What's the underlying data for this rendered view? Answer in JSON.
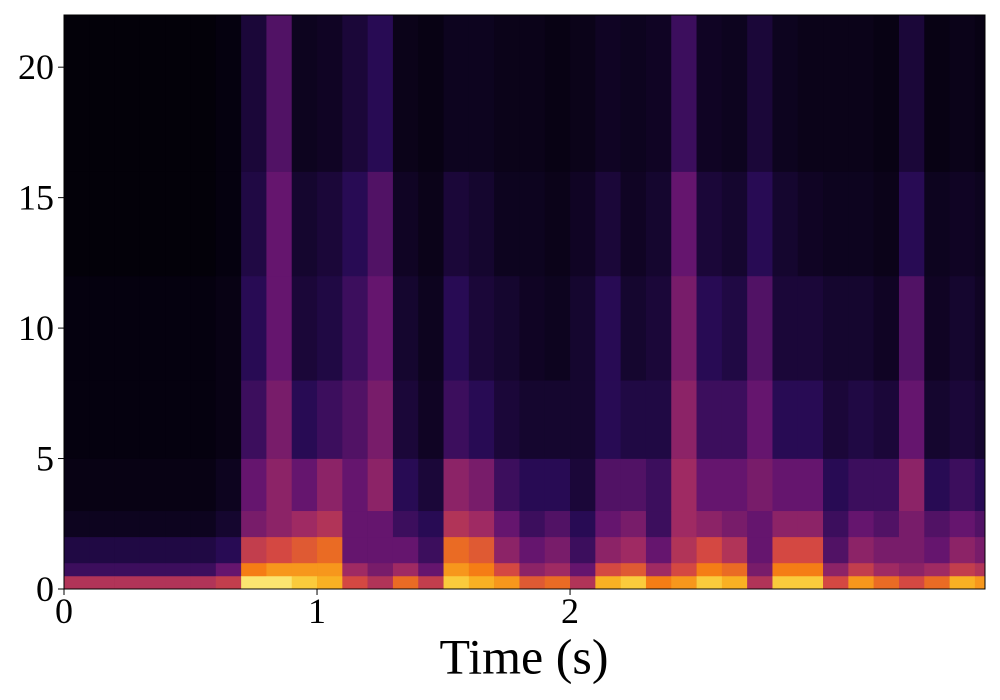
{
  "chart_data": {
    "type": "spectrogram",
    "x_label": "Time (s)",
    "colormap": "inferno",
    "xlim": [
      0,
      3.64
    ],
    "xticks": [
      0,
      1,
      2
    ],
    "ylim": [
      0,
      22
    ],
    "yticks": [
      0,
      5,
      10,
      15,
      20
    ],
    "x_bins": [
      0,
      0.1,
      0.2,
      0.3,
      0.4,
      0.5,
      0.6,
      0.7,
      0.8,
      0.9,
      1.0,
      1.1,
      1.2,
      1.3,
      1.4,
      1.5,
      1.6,
      1.7,
      1.8,
      1.9,
      2.0,
      2.1,
      2.2,
      2.3,
      2.4,
      2.5,
      2.6,
      2.7,
      2.8,
      2.9,
      3.0,
      3.1,
      3.2,
      3.3,
      3.4,
      3.5,
      3.6,
      3.64
    ],
    "y_bins": [
      0,
      0.5,
      1,
      2,
      3,
      5,
      8,
      12,
      16,
      22
    ],
    "values": [
      [
        0.5,
        0.2,
        0.12,
        0.05,
        0.03,
        0.02,
        0.02,
        0.01,
        0.01
      ],
      [
        0.5,
        0.2,
        0.12,
        0.05,
        0.03,
        0.02,
        0.02,
        0.01,
        0.01
      ],
      [
        0.5,
        0.2,
        0.12,
        0.05,
        0.03,
        0.02,
        0.02,
        0.01,
        0.01
      ],
      [
        0.5,
        0.2,
        0.12,
        0.05,
        0.03,
        0.02,
        0.02,
        0.01,
        0.01
      ],
      [
        0.5,
        0.2,
        0.12,
        0.05,
        0.03,
        0.02,
        0.02,
        0.01,
        0.01
      ],
      [
        0.5,
        0.2,
        0.12,
        0.05,
        0.03,
        0.02,
        0.02,
        0.01,
        0.01
      ],
      [
        0.55,
        0.3,
        0.15,
        0.08,
        0.05,
        0.03,
        0.03,
        0.02,
        0.02
      ],
      [
        0.95,
        0.75,
        0.55,
        0.35,
        0.3,
        0.2,
        0.15,
        0.12,
        0.1
      ],
      [
        0.95,
        0.8,
        0.6,
        0.4,
        0.4,
        0.35,
        0.3,
        0.3,
        0.25
      ],
      [
        0.9,
        0.8,
        0.65,
        0.45,
        0.3,
        0.15,
        0.1,
        0.08,
        0.05
      ],
      [
        0.85,
        0.8,
        0.7,
        0.5,
        0.4,
        0.2,
        0.12,
        0.1,
        0.06
      ],
      [
        0.6,
        0.45,
        0.3,
        0.3,
        0.3,
        0.25,
        0.2,
        0.15,
        0.1
      ],
      [
        0.5,
        0.35,
        0.3,
        0.3,
        0.4,
        0.35,
        0.3,
        0.25,
        0.15
      ],
      [
        0.7,
        0.45,
        0.3,
        0.2,
        0.15,
        0.1,
        0.08,
        0.06,
        0.04
      ],
      [
        0.55,
        0.3,
        0.2,
        0.15,
        0.1,
        0.06,
        0.05,
        0.04,
        0.03
      ],
      [
        0.9,
        0.8,
        0.7,
        0.5,
        0.4,
        0.2,
        0.15,
        0.1,
        0.05
      ],
      [
        0.85,
        0.75,
        0.65,
        0.45,
        0.35,
        0.15,
        0.1,
        0.08,
        0.05
      ],
      [
        0.8,
        0.6,
        0.4,
        0.3,
        0.2,
        0.1,
        0.08,
        0.05,
        0.04
      ],
      [
        0.65,
        0.4,
        0.3,
        0.2,
        0.15,
        0.08,
        0.06,
        0.05,
        0.04
      ],
      [
        0.7,
        0.45,
        0.35,
        0.25,
        0.15,
        0.08,
        0.05,
        0.04,
        0.03
      ],
      [
        0.5,
        0.3,
        0.2,
        0.15,
        0.1,
        0.08,
        0.08,
        0.06,
        0.04
      ],
      [
        0.85,
        0.6,
        0.4,
        0.3,
        0.25,
        0.15,
        0.15,
        0.1,
        0.06
      ],
      [
        0.9,
        0.65,
        0.45,
        0.35,
        0.25,
        0.12,
        0.08,
        0.06,
        0.05
      ],
      [
        0.75,
        0.45,
        0.3,
        0.2,
        0.2,
        0.12,
        0.1,
        0.08,
        0.06
      ],
      [
        0.8,
        0.6,
        0.5,
        0.45,
        0.45,
        0.4,
        0.35,
        0.3,
        0.2
      ],
      [
        0.9,
        0.75,
        0.6,
        0.4,
        0.3,
        0.2,
        0.15,
        0.1,
        0.06
      ],
      [
        0.85,
        0.7,
        0.5,
        0.35,
        0.3,
        0.2,
        0.12,
        0.08,
        0.05
      ],
      [
        0.5,
        0.35,
        0.3,
        0.3,
        0.35,
        0.3,
        0.25,
        0.15,
        0.1
      ],
      [
        0.9,
        0.75,
        0.6,
        0.4,
        0.3,
        0.15,
        0.1,
        0.08,
        0.05
      ],
      [
        0.9,
        0.75,
        0.6,
        0.4,
        0.3,
        0.15,
        0.1,
        0.06,
        0.04
      ],
      [
        0.6,
        0.4,
        0.25,
        0.2,
        0.15,
        0.1,
        0.08,
        0.05,
        0.04
      ],
      [
        0.8,
        0.55,
        0.4,
        0.3,
        0.2,
        0.12,
        0.08,
        0.05,
        0.04
      ],
      [
        0.7,
        0.45,
        0.35,
        0.25,
        0.2,
        0.1,
        0.06,
        0.04,
        0.03
      ],
      [
        0.6,
        0.4,
        0.35,
        0.35,
        0.4,
        0.3,
        0.25,
        0.15,
        0.1
      ],
      [
        0.7,
        0.45,
        0.3,
        0.25,
        0.15,
        0.08,
        0.06,
        0.05,
        0.03
      ],
      [
        0.85,
        0.55,
        0.4,
        0.3,
        0.2,
        0.1,
        0.08,
        0.06,
        0.04
      ],
      [
        0.8,
        0.5,
        0.35,
        0.25,
        0.15,
        0.08,
        0.06,
        0.05,
        0.03
      ]
    ]
  }
}
